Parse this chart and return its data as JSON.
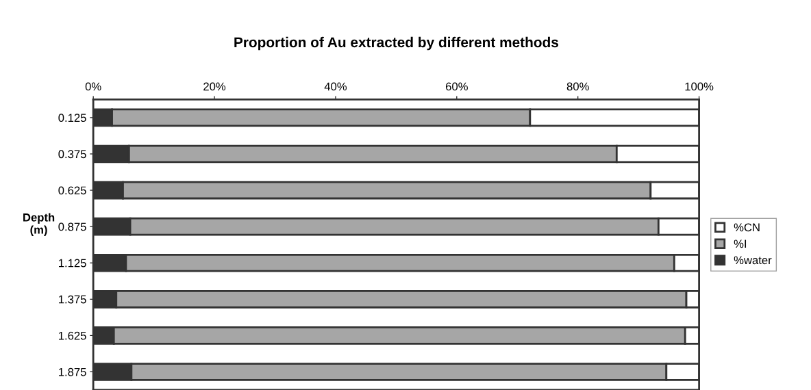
{
  "chart_data": {
    "type": "bar",
    "orientation": "horizontal",
    "stacked": true,
    "title": "Proportion of Au extracted by different methods",
    "ylabel": "Depth\n(m)",
    "categories": [
      "0.125",
      "0.375",
      "0.625",
      "0.875",
      "1.125",
      "1.375",
      "1.625",
      "1.875"
    ],
    "series": [
      {
        "name": "%water",
        "color": "#333333",
        "values": [
          3.1,
          5.9,
          4.9,
          6.1,
          5.4,
          3.8,
          3.4,
          6.3
        ]
      },
      {
        "name": "%I",
        "color": "#a6a6a6",
        "values": [
          69.0,
          80.5,
          87.1,
          87.2,
          90.5,
          94.1,
          94.3,
          88.3
        ]
      },
      {
        "name": "%CN",
        "color": "#ffffff",
        "values": [
          27.9,
          13.6,
          8.0,
          6.7,
          4.1,
          2.1,
          2.3,
          5.4
        ]
      }
    ],
    "xlim": [
      0,
      100
    ],
    "xticks": [
      {
        "value": 0,
        "label": "0%"
      },
      {
        "value": 20,
        "label": "20%"
      },
      {
        "value": 40,
        "label": "40%"
      },
      {
        "value": 60,
        "label": "60%"
      },
      {
        "value": 80,
        "label": "80%"
      },
      {
        "value": 100,
        "label": "100%"
      }
    ],
    "grid": false,
    "legend": "right"
  }
}
